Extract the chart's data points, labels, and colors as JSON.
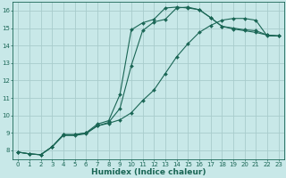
{
  "xlabel": "Humidex (Indice chaleur)",
  "bg_color": "#c8e8e8",
  "grid_color": "#a8cccc",
  "line_color": "#1a6655",
  "xlim": [
    -0.5,
    23.5
  ],
  "ylim": [
    7.5,
    16.5
  ],
  "xticks": [
    0,
    1,
    2,
    3,
    4,
    5,
    6,
    7,
    8,
    9,
    10,
    11,
    12,
    13,
    14,
    15,
    16,
    17,
    18,
    19,
    20,
    21,
    22,
    23
  ],
  "yticks": [
    8,
    9,
    10,
    11,
    12,
    13,
    14,
    15,
    16
  ],
  "line1_x": [
    0,
    1,
    2,
    3,
    4,
    5,
    6,
    7,
    8,
    9,
    10,
    11,
    12,
    13,
    14,
    15,
    16,
    17,
    18,
    19,
    20,
    21,
    22,
    23
  ],
  "line1_y": [
    7.9,
    7.8,
    7.75,
    8.2,
    8.9,
    8.9,
    9.0,
    9.5,
    9.7,
    11.2,
    14.9,
    15.3,
    15.5,
    16.15,
    16.2,
    16.15,
    16.05,
    15.6,
    15.1,
    15.0,
    14.9,
    14.85,
    14.6,
    14.55
  ],
  "line2_x": [
    0,
    1,
    2,
    3,
    4,
    5,
    6,
    7,
    8,
    9,
    10,
    11,
    12,
    13,
    14,
    15,
    16,
    17,
    18,
    19,
    20,
    21,
    22,
    23
  ],
  "line2_y": [
    7.9,
    7.8,
    7.75,
    8.2,
    8.9,
    8.9,
    9.0,
    9.4,
    9.6,
    10.4,
    12.85,
    14.85,
    15.35,
    15.5,
    16.15,
    16.2,
    16.05,
    15.6,
    15.1,
    14.95,
    14.85,
    14.75,
    14.6,
    14.55
  ],
  "line3_x": [
    0,
    1,
    2,
    3,
    4,
    5,
    6,
    7,
    8,
    9,
    10,
    11,
    12,
    13,
    14,
    15,
    16,
    17,
    18,
    19,
    20,
    21,
    22,
    23
  ],
  "line3_y": [
    7.9,
    7.8,
    7.75,
    8.2,
    8.85,
    8.85,
    8.95,
    9.4,
    9.55,
    9.75,
    10.15,
    10.85,
    11.45,
    12.4,
    13.35,
    14.1,
    14.75,
    15.15,
    15.45,
    15.55,
    15.55,
    15.45,
    14.55,
    14.55
  ]
}
